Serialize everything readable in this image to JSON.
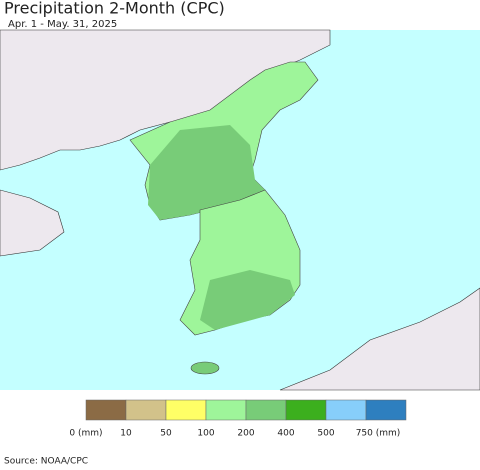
{
  "header": {
    "title": "Precipitation 2-Month (CPC)",
    "subtitle": "Apr. 1 - May. 31, 2025"
  },
  "legend": {
    "items": [
      {
        "label": "0 (mm)",
        "color": "#8b6b45"
      },
      {
        "label": "10",
        "color": "#d2c28a"
      },
      {
        "label": "50",
        "color": "#ffff66"
      },
      {
        "label": "100",
        "color": "#9ef59a"
      },
      {
        "label": "200",
        "color": "#78cc78"
      },
      {
        "label": "400",
        "color": "#3caf1e"
      },
      {
        "label": "500",
        "color": "#87cefa"
      },
      {
        "label": "750 (mm)",
        "color": "#2e7fbf"
      }
    ]
  },
  "footer": {
    "source": "Source: NOAA/CPC"
  }
}
